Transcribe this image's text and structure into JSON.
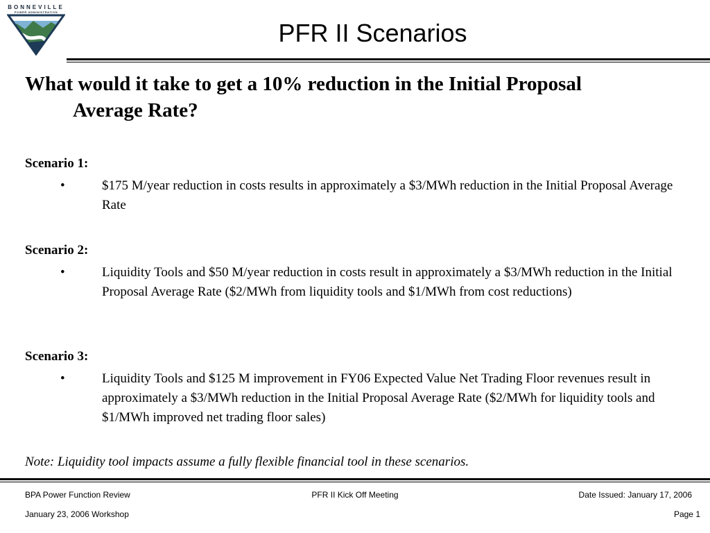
{
  "logo": {
    "line1": "BONNEVILLE",
    "line2": "POWER ADMINISTRATION",
    "icon": "bpa-triangle-logo-icon",
    "colors": {
      "navy": "#1d3a57",
      "sky": "#7fb3d5",
      "green": "#3f7a4a",
      "river": "#ffffff"
    }
  },
  "header": {
    "title": "PFR II Scenarios"
  },
  "question": {
    "line1": "What would it take to get a 10% reduction in the Initial Proposal",
    "line2": "Average Rate?"
  },
  "scenarios": [
    {
      "label": "Scenario 1:",
      "bullet": "•",
      "text": "$175 M/year reduction in costs results in approximately a $3/MWh reduction in the Initial Proposal Average Rate"
    },
    {
      "label": "Scenario 2:",
      "bullet": "•",
      "text": "Liquidity Tools and $50 M/year reduction in costs result in approximately a $3/MWh reduction in the Initial Proposal Average Rate ($2/MWh from liquidity tools and $1/MWh from cost reductions)"
    },
    {
      "label": "Scenario 3:",
      "bullet": "•",
      "text": "Liquidity Tools and $125 M improvement in FY06 Expected Value Net Trading Floor revenues result in approximately a $3/MWh reduction in the Initial Proposal Average Rate ($2/MWh for liquidity tools and $1/MWh improved net trading floor sales)"
    }
  ],
  "note": "Note: Liquidity tool impacts assume a fully flexible financial tool in these scenarios.",
  "footer": {
    "left_top": "BPA Power Function Review",
    "center_top": "PFR II Kick Off Meeting",
    "right_top": "Date Issued: January 17, 2006",
    "left_bottom": "January 23, 2006 Workshop",
    "right_bottom": "Page 1"
  }
}
